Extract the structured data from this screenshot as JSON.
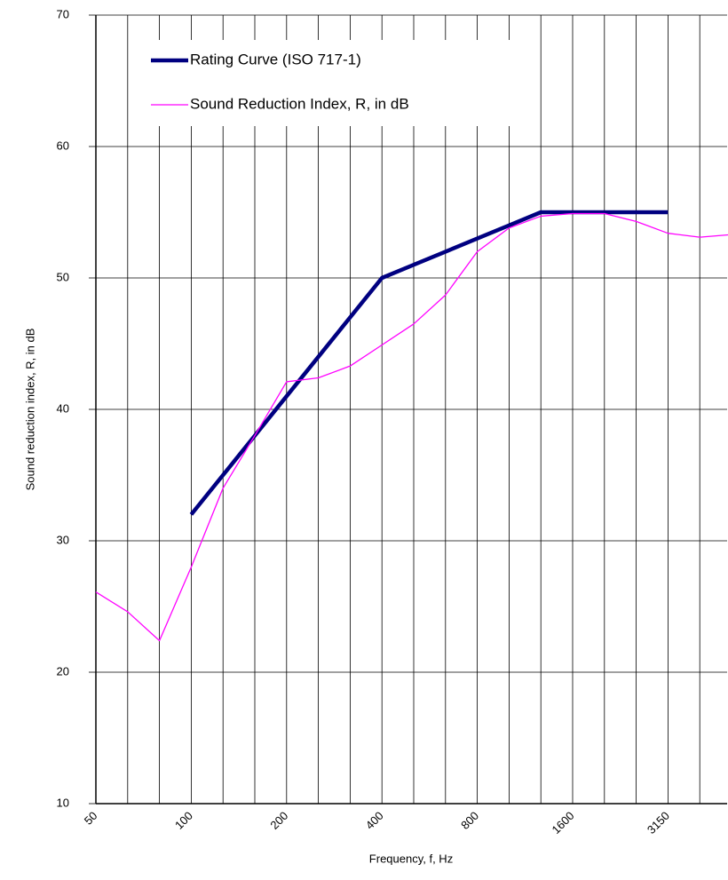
{
  "chart_data": {
    "type": "line",
    "xlabel": "Frequency, f, Hz",
    "ylabel": "Sound reduction index, R, in dB",
    "categories": [
      "50",
      null,
      null,
      "100",
      null,
      null,
      "200",
      null,
      null,
      "400",
      null,
      null,
      "800",
      null,
      null,
      "1600",
      null,
      null,
      "3150",
      null,
      null
    ],
    "series": [
      {
        "name": "Rating Curve (ISO 717-1)",
        "color": "#000080",
        "values": [
          null,
          null,
          null,
          32,
          35,
          38,
          41,
          44,
          47,
          50,
          51,
          52,
          53,
          54,
          55,
          55,
          55,
          55,
          55,
          null,
          null
        ]
      },
      {
        "name": "Sound Reduction Index, R, in dB",
        "color": "#ff00ff",
        "values": [
          26.1,
          24.6,
          22.4,
          28,
          34,
          38,
          42.1,
          42.4,
          43.3,
          44.9,
          46.5,
          48.7,
          52,
          53.8,
          54.7,
          54.9,
          54.9,
          54.3,
          53.4,
          53.1,
          53.3
        ]
      }
    ],
    "ylim": [
      10,
      70
    ],
    "yticks": [
      10,
      20,
      30,
      40,
      50,
      60,
      70
    ],
    "grid": true
  }
}
